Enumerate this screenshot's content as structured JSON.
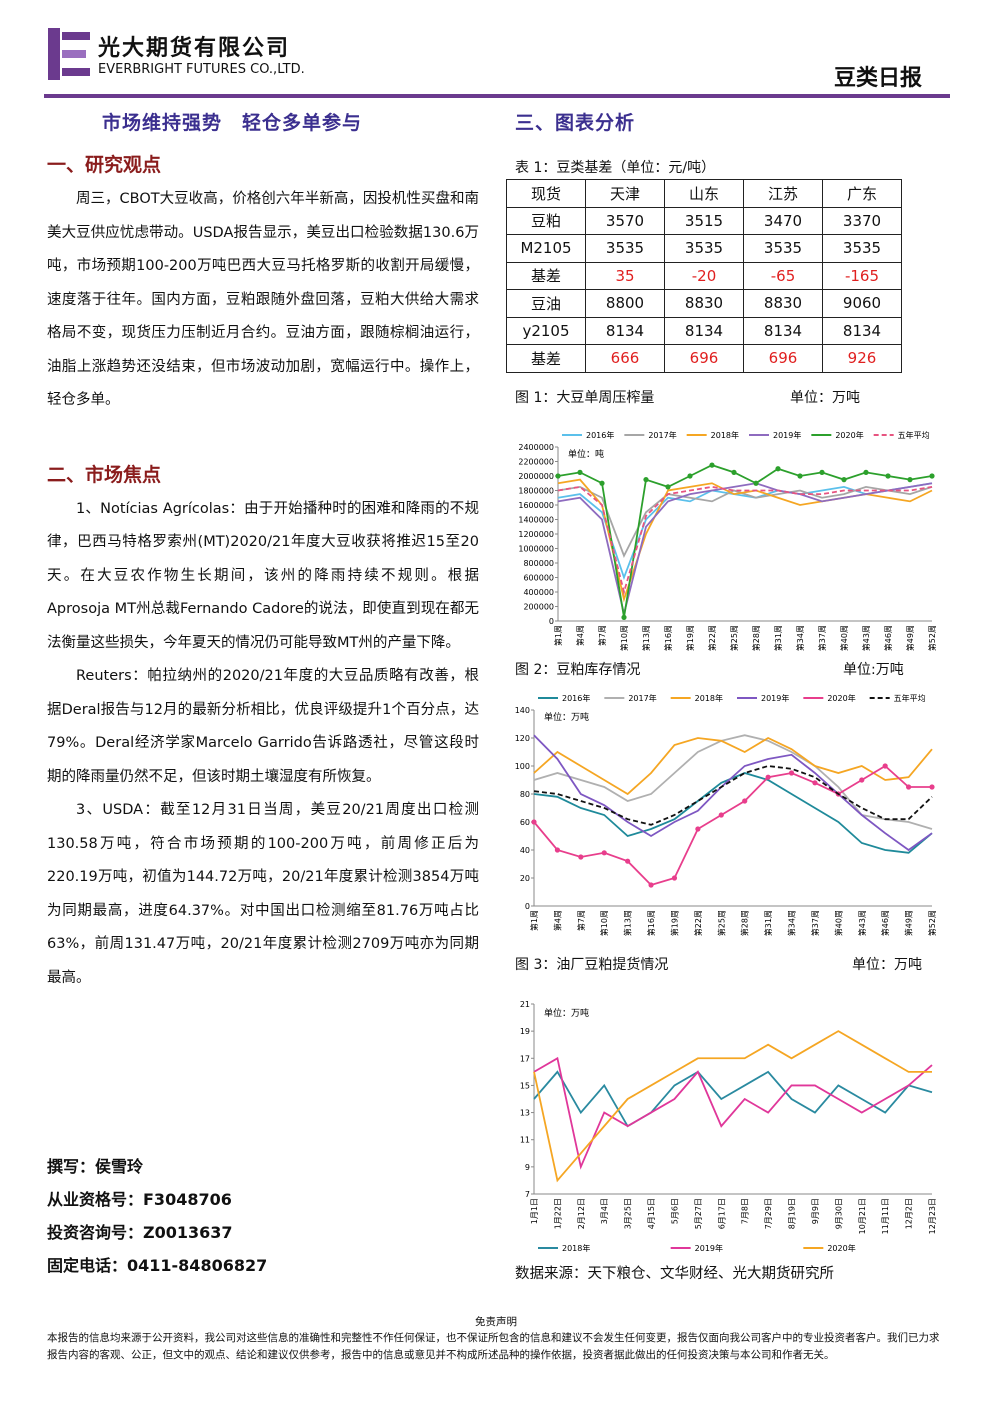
{
  "header": {
    "company_cn": "光大期货有限公司",
    "company_en": "EVERBRIGHT FUTURES CO.,LTD.",
    "report_name": "豆类日报"
  },
  "headline": "市场维持强势　轻仓多单参与",
  "sections": [
    {
      "heading": "一、研究观点",
      "paragraphs": [
        "周三，CBOT大豆收高，价格创六年半新高，因投机性买盘和南美大豆供应忧虑带动。USDA报告显示，美豆出口检验数据130.6万吨，市场预期100-200万吨巴西大豆马托格罗斯的收割开局缓慢，速度落于往年。国内方面，豆粕跟随外盘回落，豆粕大供给大需求格局不变，现货压力压制近月合约。豆油方面，跟随棕榈油运行，油脂上涨趋势还没结束，但市场波动加剧，宽幅运行中。操作上，轻仓多单。"
      ]
    },
    {
      "heading": "二、市场焦点",
      "paragraphs": [
        "1、Notícias Agrícolas：由于开始播种时的困难和降雨的不规律，巴西马特格罗索州(MT)2020/21年度大豆收获将推迟15至20天。在大豆农作物生长期间，该州的降雨持续不规则。根据Aprosoja MT州总裁Fernando Cadore的说法，即使直到现在都无法衡量这些损失，今年夏天的情况仍可能导致MT州的产量下降。",
        "Reuters：帕拉纳州的2020/21年度的大豆品质略有改善，根据Deral报告与12月的最新分析相比，优良评级提升1个百分点，达79%。Deral经济学家Marcelo Garrido告诉路透社，尽管这段时期的降雨量仍然不足，但该时期土壤湿度有所恢复。",
        "3、USDA：截至12月31日当周，美豆20/21周度出口检测130.58万吨，符合市场预期的100-200万吨，前周修正后为220.19万吨，初值为144.72万吨，20/21年度累计检测3854万吨为同期最高，进度64.37%。对中国出口检测缩至81.76万吨占比63%，前周131.47万吨，20/21年度累计检测2709万吨亦为同期最高。"
      ]
    }
  ],
  "author": [
    "撰写：侯雪玲",
    "从业资格号：F3048706",
    "投资咨询号：Z0013637",
    "固定电话：0411-84806827"
  ],
  "right": {
    "heading": "三、图表分析",
    "table_caption": "表 1：豆类基差（单位：元/吨）",
    "table": {
      "header": [
        "现货",
        "天津",
        "山东",
        "江苏",
        "广东"
      ],
      "rows": [
        [
          "豆粕",
          3570,
          3515,
          3470,
          3370
        ],
        [
          "M2105",
          3535,
          3535,
          3535,
          3535
        ],
        [
          "基差",
          35,
          -20,
          -65,
          -165
        ],
        [
          "豆油",
          8800,
          8830,
          8830,
          9060
        ],
        [
          "y2105",
          8134,
          8134,
          8134,
          8134
        ],
        [
          "基差",
          666,
          696,
          696,
          926
        ]
      ]
    },
    "figures": [
      {
        "caption": "图 1：大豆单周压榨量",
        "unit": "单位：万吨"
      },
      {
        "caption": "图 2：豆粕库存情况",
        "unit": "单位:万吨"
      },
      {
        "caption": "图 3：油厂豆粕提货情况",
        "unit": "单位：万吨"
      }
    ],
    "source": "数据来源：天下粮仓、文华财经、光大期货研究所"
  },
  "footer": {
    "title": "免责声明",
    "text": "本报告的信息均来源于公开资料，我公司对这些信息的准确性和完整性不作任何保证，也不保证所包含的信息和建议不会发生任何变更，报告仅面向我公司客户中的专业投资者客户。我们已力求报告内容的客观、公正，但文中的观点、结论和建议仅供参考，报告中的信息或意见并不构成所述品种的操作依据，投资者据此做出的任何投资决策与本公司和作者无关。"
  },
  "chart_data": [
    {
      "type": "line",
      "unit_label": "单位：吨",
      "legend": "top",
      "categories": [
        "第1周",
        "第4周",
        "第7周",
        "第10周",
        "第13周",
        "第16周",
        "第19周",
        "第22周",
        "第25周",
        "第28周",
        "第31周",
        "第34周",
        "第37周",
        "第40周",
        "第43周",
        "第46周",
        "第49周",
        "第52周"
      ],
      "ylim": [
        0,
        2400000
      ],
      "yticks": [
        0,
        200000,
        400000,
        600000,
        800000,
        1000000,
        1200000,
        1400000,
        1600000,
        1800000,
        2000000,
        2200000,
        2400000
      ],
      "series": [
        {
          "name": "2016年",
          "color": "#5bc0eb",
          "values": [
            1700000,
            1750000,
            1500000,
            600000,
            1400000,
            1700000,
            1650000,
            1800000,
            1750000,
            1700000,
            1800000,
            1750000,
            1800000,
            1850000,
            1750000,
            1800000,
            1850000,
            1900000
          ]
        },
        {
          "name": "2017年",
          "color": "#a6a6a6",
          "values": [
            1800000,
            1850000,
            1700000,
            900000,
            1500000,
            1750000,
            1700000,
            1650000,
            1800000,
            1700000,
            1750000,
            1800000,
            1700000,
            1750000,
            1850000,
            1800000,
            1750000,
            1850000
          ]
        },
        {
          "name": "2018年",
          "color": "#f5a623",
          "values": [
            1900000,
            1950000,
            1600000,
            300000,
            1200000,
            1800000,
            1850000,
            1900000,
            1750000,
            1800000,
            1700000,
            1600000,
            1650000,
            1700000,
            1750000,
            1700000,
            1650000,
            1800000
          ]
        },
        {
          "name": "2019年",
          "color": "#8e6bbf",
          "values": [
            1650000,
            1700000,
            1400000,
            100000,
            1300000,
            1650000,
            1750000,
            1800000,
            1850000,
            1900000,
            1800000,
            1750000,
            1650000,
            1700000,
            1750000,
            1800000,
            1850000,
            1900000
          ]
        },
        {
          "name": "2020年",
          "color": "#2ca02c",
          "marker": true,
          "values": [
            2000000,
            2050000,
            1900000,
            50000,
            1950000,
            1850000,
            2000000,
            2150000,
            2050000,
            1900000,
            2100000,
            2000000,
            2050000,
            1950000,
            2050000,
            2000000,
            1950000,
            2000000
          ]
        },
        {
          "name": "五年平均",
          "color": "#e75480",
          "dash": true,
          "values": [
            1800000,
            1850000,
            1600000,
            400000,
            1450000,
            1750000,
            1800000,
            1850000,
            1800000,
            1800000,
            1800000,
            1750000,
            1750000,
            1800000,
            1800000,
            1800000,
            1800000,
            1850000
          ]
        }
      ]
    },
    {
      "type": "line",
      "unit_label": "单位：万吨",
      "legend": "top",
      "categories": [
        "第1周",
        "第4周",
        "第7周",
        "第10周",
        "第13周",
        "第16周",
        "第19周",
        "第22周",
        "第25周",
        "第28周",
        "第31周",
        "第34周",
        "第37周",
        "第40周",
        "第43周",
        "第46周",
        "第49周",
        "第52周"
      ],
      "ylim": [
        0,
        140
      ],
      "yticks": [
        0,
        20,
        40,
        60,
        80,
        100,
        120,
        140
      ],
      "series": [
        {
          "name": "2016年",
          "color": "#1f8a9a",
          "values": [
            80,
            78,
            70,
            65,
            50,
            55,
            62,
            75,
            88,
            95,
            90,
            80,
            70,
            60,
            45,
            40,
            38,
            52
          ]
        },
        {
          "name": "2017年",
          "color": "#b0b0b0",
          "values": [
            90,
            95,
            90,
            85,
            75,
            80,
            95,
            110,
            118,
            122,
            118,
            110,
            100,
            85,
            65,
            62,
            60,
            55
          ]
        },
        {
          "name": "2018年",
          "color": "#f5a623",
          "values": [
            95,
            110,
            100,
            90,
            80,
            95,
            115,
            120,
            118,
            110,
            120,
            112,
            100,
            95,
            100,
            90,
            92,
            112
          ]
        },
        {
          "name": "2019年",
          "color": "#7e57c2",
          "values": [
            122,
            105,
            80,
            72,
            60,
            50,
            60,
            68,
            85,
            100,
            105,
            108,
            95,
            80,
            65,
            52,
            40,
            52
          ]
        },
        {
          "name": "2020年",
          "color": "#e83e8c",
          "marker": true,
          "values": [
            60,
            40,
            35,
            38,
            32,
            15,
            20,
            55,
            65,
            75,
            92,
            95,
            88,
            80,
            90,
            100,
            85,
            85
          ]
        },
        {
          "name": "五年平均",
          "color": "#111111",
          "dash": true,
          "values": [
            82,
            80,
            75,
            70,
            62,
            58,
            65,
            75,
            85,
            95,
            100,
            98,
            92,
            80,
            70,
            62,
            62,
            78
          ]
        }
      ]
    },
    {
      "type": "line",
      "unit_label": "单位：万吨",
      "legend": "bottom",
      "categories": [
        "1月1日",
        "1月22日",
        "2月12日",
        "3月4日",
        "3月25日",
        "4月15日",
        "5月6日",
        "5月27日",
        "6月17日",
        "7月8日",
        "7月29日",
        "8月19日",
        "9月9日",
        "9月30日",
        "10月21日",
        "11月11日",
        "12月2日",
        "12月23日"
      ],
      "ylim": [
        7,
        21
      ],
      "yticks": [
        7,
        9,
        11,
        13,
        15,
        17,
        19,
        21
      ],
      "series": [
        {
          "name": "2018年",
          "color": "#2a8aa0",
          "values": [
            14,
            16,
            13,
            15,
            12,
            13,
            15,
            16,
            14,
            15,
            16,
            14,
            13,
            15,
            14,
            13,
            15,
            14.5
          ]
        },
        {
          "name": "2019年",
          "color": "#e0379a",
          "values": [
            16,
            17,
            9,
            13,
            12,
            13,
            14,
            16,
            12,
            14,
            13,
            15,
            15,
            14,
            13,
            14,
            15,
            16.5
          ]
        },
        {
          "name": "2020年",
          "color": "#f5a623",
          "values": [
            16,
            8,
            10,
            12,
            14,
            15,
            16,
            17,
            17,
            17,
            18,
            17,
            18,
            19,
            18,
            17,
            16,
            16
          ]
        }
      ]
    }
  ]
}
